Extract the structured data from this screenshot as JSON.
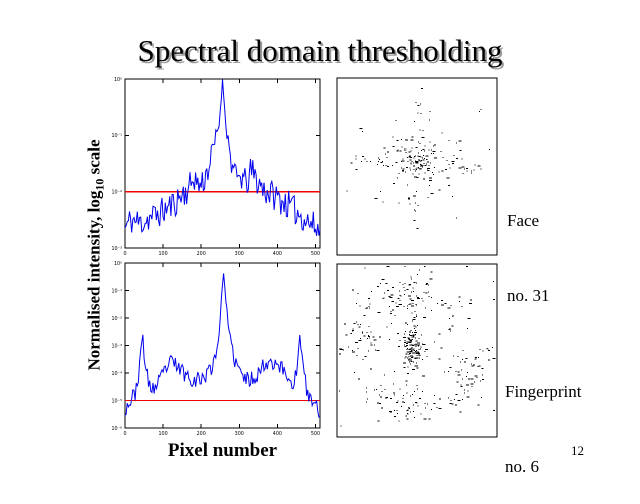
{
  "slide": {
    "title": "Spectral domain thresholding",
    "page_number": "12"
  },
  "labels": {
    "y_axis_main": "Normalised intensity, log",
    "y_axis_sub": "10",
    "y_axis_tail": " scale",
    "x_axis": "Pixel number",
    "face_line1": "Face",
    "face_line2": "no. 31",
    "fingerprint_line1": "Fingerprint",
    "fingerprint_line2": "no. 6"
  },
  "colors": {
    "curve": "#0000ee",
    "threshold": "#ee0000",
    "axis": "#000000",
    "scatter_dot": "#000000",
    "title_shadow": "#9a9a9a"
  },
  "chart_data": [
    {
      "id": "face-spectrum",
      "type": "line",
      "title": "",
      "xlabel": "Pixel number",
      "ylabel": "Normalised intensity, log10 scale",
      "x_range": [
        0,
        512
      ],
      "x_ticks": [
        0,
        100,
        200,
        300,
        400,
        500
      ],
      "y_scale": "log10",
      "y_decades": 3,
      "y_tick_labels": [
        "10⁰",
        "10⁻¹",
        "10⁻²",
        "10⁻³"
      ],
      "threshold_log": -2,
      "noise_amp": 0.26,
      "seed": 11,
      "samples": 175,
      "envelope_log10": [
        [
          0,
          -2.65
        ],
        [
          15,
          -2.5
        ],
        [
          40,
          -2.55
        ],
        [
          70,
          -2.45
        ],
        [
          100,
          -2.35
        ],
        [
          130,
          -2.2
        ],
        [
          150,
          -2.05
        ],
        [
          168,
          -1.95
        ],
        [
          182,
          -1.72
        ],
        [
          192,
          -1.9
        ],
        [
          205,
          -1.82
        ],
        [
          218,
          -1.6
        ],
        [
          228,
          -1.35
        ],
        [
          238,
          -1.05
        ],
        [
          247,
          -0.8
        ],
        [
          252,
          -0.4
        ],
        [
          256,
          -0.02
        ],
        [
          261,
          -0.45
        ],
        [
          266,
          -0.85
        ],
        [
          271,
          -1.1
        ],
        [
          280,
          -1.5
        ],
        [
          292,
          -1.8
        ],
        [
          305,
          -1.72
        ],
        [
          318,
          -1.88
        ],
        [
          332,
          -1.62
        ],
        [
          348,
          -1.82
        ],
        [
          368,
          -1.98
        ],
        [
          395,
          -2.08
        ],
        [
          425,
          -2.22
        ],
        [
          458,
          -2.4
        ],
        [
          485,
          -2.55
        ],
        [
          512,
          -2.7
        ]
      ]
    },
    {
      "id": "fingerprint-spectrum",
      "type": "line",
      "title": "",
      "xlabel": "Pixel number",
      "ylabel": "Normalised intensity, log10 scale",
      "x_range": [
        0,
        512
      ],
      "x_ticks": [
        0,
        100,
        200,
        300,
        400,
        500
      ],
      "y_scale": "log10",
      "y_decades": 6,
      "y_tick_labels": [
        "10⁰",
        "10⁻¹",
        "10⁻²",
        "10⁻³",
        "10⁻⁴",
        "10⁻⁵",
        "10⁻⁶"
      ],
      "threshold_log": -5,
      "noise_amp": 0.3,
      "seed": 23,
      "samples": 175,
      "envelope_log10": [
        [
          0,
          -5.3
        ],
        [
          12,
          -5.05
        ],
        [
          25,
          -4.8
        ],
        [
          38,
          -3.9
        ],
        [
          46,
          -2.55
        ],
        [
          54,
          -3.9
        ],
        [
          65,
          -4.5
        ],
        [
          80,
          -4.55
        ],
        [
          95,
          -4.2
        ],
        [
          110,
          -3.75
        ],
        [
          125,
          -3.6
        ],
        [
          140,
          -3.8
        ],
        [
          155,
          -4.0
        ],
        [
          170,
          -4.15
        ],
        [
          185,
          -4.25
        ],
        [
          200,
          -4.2
        ],
        [
          215,
          -4.05
        ],
        [
          230,
          -3.7
        ],
        [
          240,
          -3.2
        ],
        [
          248,
          -2.4
        ],
        [
          254,
          -1.2
        ],
        [
          258,
          -0.25
        ],
        [
          263,
          -1.0
        ],
        [
          270,
          -2.2
        ],
        [
          278,
          -3.0
        ],
        [
          290,
          -3.6
        ],
        [
          305,
          -4.05
        ],
        [
          320,
          -4.25
        ],
        [
          335,
          -4.2
        ],
        [
          350,
          -4.0
        ],
        [
          365,
          -3.7
        ],
        [
          380,
          -3.55
        ],
        [
          395,
          -3.6
        ],
        [
          410,
          -3.8
        ],
        [
          425,
          -4.1
        ],
        [
          440,
          -4.4
        ],
        [
          452,
          -3.9
        ],
        [
          460,
          -2.6
        ],
        [
          468,
          -3.9
        ],
        [
          478,
          -4.7
        ],
        [
          490,
          -5.05
        ],
        [
          512,
          -5.35
        ]
      ]
    },
    {
      "id": "face-threshold-map",
      "type": "scatter",
      "title": "",
      "description": "Spectral points of face no. 31 above threshold",
      "seed": 5,
      "clusters": [
        [
          0.5,
          0.47,
          0.05,
          0.04,
          60
        ],
        [
          0.5,
          0.47,
          0.11,
          0.09,
          60
        ],
        [
          0.5,
          0.47,
          0.2,
          0.16,
          40
        ],
        [
          0.17,
          0.47,
          0.05,
          0.02,
          12
        ],
        [
          0.84,
          0.51,
          0.05,
          0.02,
          12
        ],
        [
          0.5,
          0.24,
          0.02,
          0.1,
          9
        ],
        [
          0.5,
          0.74,
          0.03,
          0.09,
          9
        ],
        [
          0.3,
          0.47,
          0.04,
          0.03,
          8
        ],
        [
          0.7,
          0.49,
          0.04,
          0.03,
          8
        ]
      ]
    },
    {
      "id": "fingerprint-threshold-map",
      "type": "scatter",
      "title": "",
      "description": "Spectral points of fingerprint no. 6 above threshold",
      "seed": 9,
      "clusters": [
        [
          0.47,
          0.48,
          0.035,
          0.05,
          85
        ],
        [
          0.47,
          0.45,
          0.03,
          0.15,
          45
        ],
        [
          0.45,
          0.16,
          0.08,
          0.06,
          55
        ],
        [
          0.47,
          0.83,
          0.09,
          0.055,
          55
        ],
        [
          0.14,
          0.41,
          0.055,
          0.07,
          40
        ],
        [
          0.81,
          0.62,
          0.065,
          0.055,
          40
        ],
        [
          0.28,
          0.24,
          0.09,
          0.05,
          22
        ],
        [
          0.7,
          0.28,
          0.08,
          0.06,
          18
        ],
        [
          0.24,
          0.72,
          0.06,
          0.05,
          18
        ],
        [
          0.75,
          0.78,
          0.05,
          0.04,
          12
        ],
        [
          0.47,
          0.47,
          0.3,
          0.27,
          55
        ],
        [
          0.035,
          0.49,
          0.02,
          0.008,
          5
        ],
        [
          0.95,
          0.49,
          0.02,
          0.008,
          5
        ]
      ]
    }
  ]
}
